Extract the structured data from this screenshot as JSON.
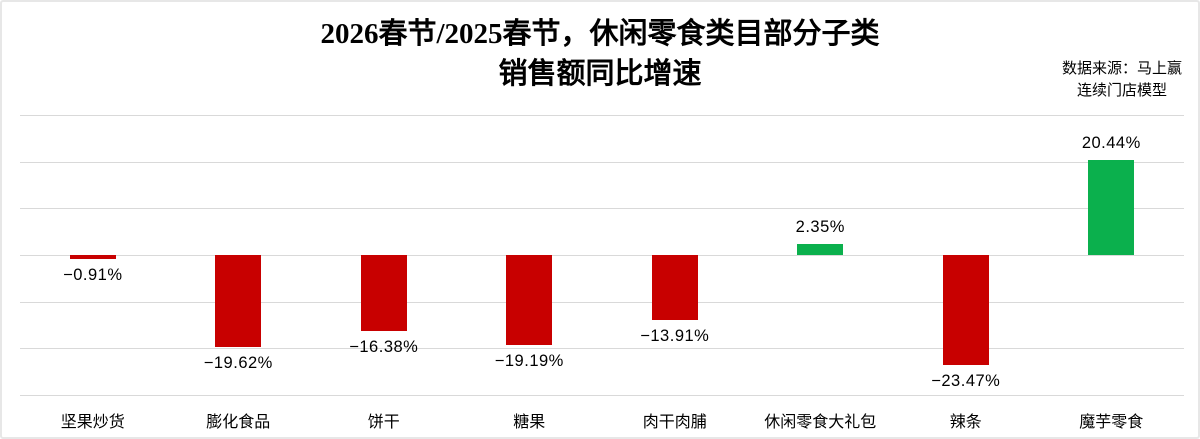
{
  "title": {
    "line1": "2026春节/2025春节，休闲零食类目部分子类",
    "line2": "销售额同比增速"
  },
  "source": {
    "line1": "数据来源：马上赢",
    "line2": "连续门店模型"
  },
  "chart_data": {
    "type": "bar",
    "title": "2026春节/2025春节，休闲零食类目部分子类 销售额同比增速",
    "source_note": "数据来源：马上赢 连续门店模型",
    "categories": [
      "坚果炒货",
      "膨化食品",
      "饼干",
      "糖果",
      "肉干肉脯",
      "休闲零食大礼包",
      "辣条",
      "魔芋零食"
    ],
    "values": [
      -0.91,
      -19.62,
      -16.38,
      -19.19,
      -13.91,
      2.35,
      -23.47,
      20.44
    ],
    "labels": [
      "−0.91%",
      "−19.62%",
      "−16.38%",
      "−19.19%",
      "−13.91%",
      "2.35%",
      "−23.47%",
      "20.44%"
    ],
    "xlabel": "",
    "ylabel": "",
    "ylim": [
      -30,
      30
    ],
    "grid_step": 10,
    "grid": true,
    "legend": false,
    "positive_color": "#0bb04d",
    "negative_color": "#c80000",
    "gridline_color": "#d9d9d9",
    "label_color": "#000000"
  }
}
